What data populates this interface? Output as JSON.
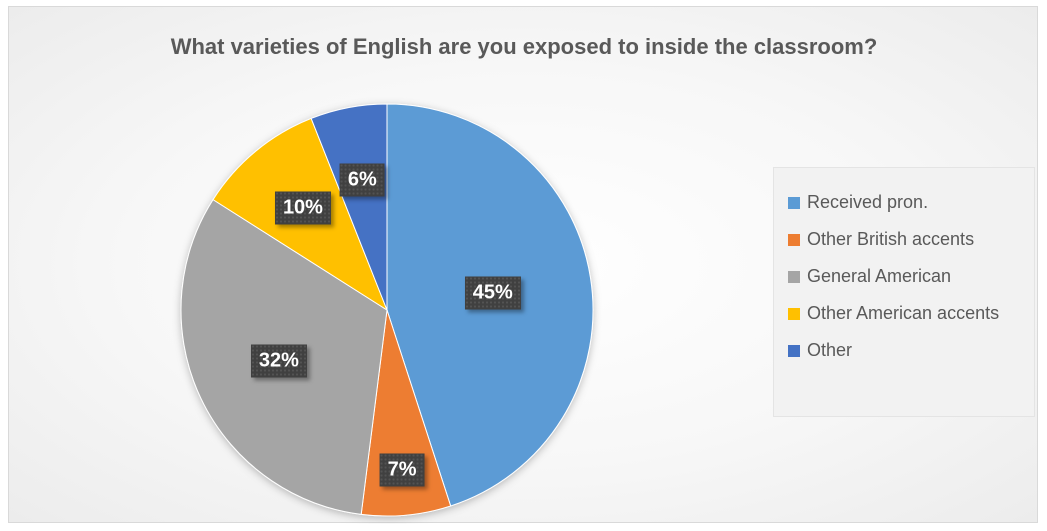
{
  "chart_data": {
    "type": "pie",
    "title": "What varieties of English are you exposed to inside the classroom?",
    "categories": [
      "Received pron.",
      "Other British accents",
      "General American",
      "Other American accents",
      "Other"
    ],
    "values": [
      45,
      7,
      32,
      10,
      6
    ],
    "labels": [
      "45%",
      "7%",
      "32%",
      "10%",
      "6%"
    ],
    "colors": [
      "#5B9BD5",
      "#ED7D31",
      "#A5A5A5",
      "#FFC000",
      "#4472C4"
    ],
    "legend": "right",
    "start_angle": "12 o'clock, clockwise"
  }
}
